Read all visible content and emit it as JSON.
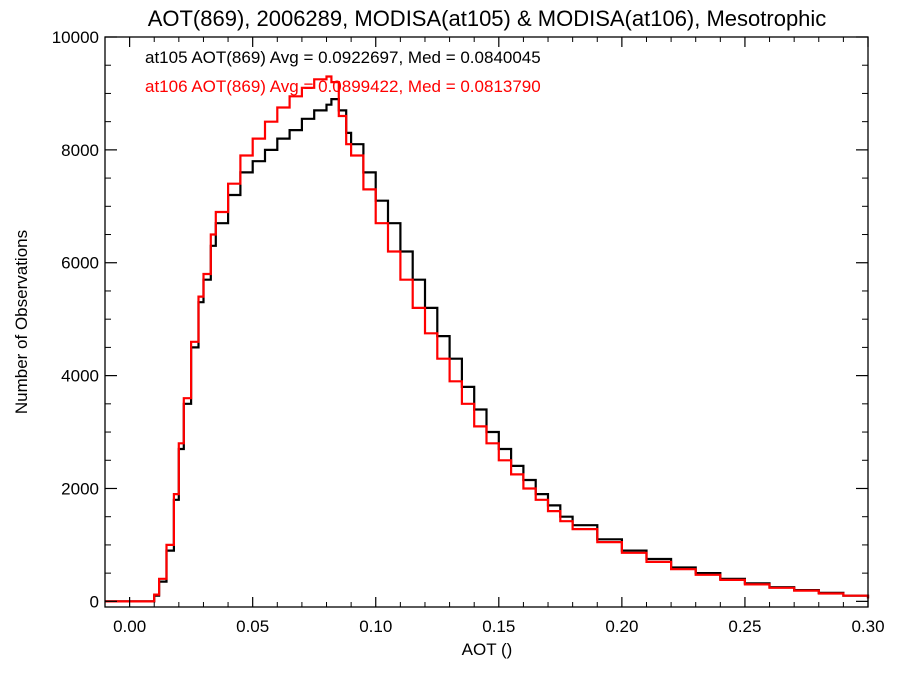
{
  "chart_data": {
    "type": "line",
    "title": "AOT(869), 2006289, MODISA(at105) & MODISA(at106), Mesotrophic",
    "xlabel": "AOT ()",
    "ylabel": "Number of Observations",
    "xlim": [
      -0.01,
      0.3
    ],
    "ylim": [
      -100,
      10000
    ],
    "x_ticks": [
      0.0,
      0.05,
      0.1,
      0.15,
      0.2,
      0.25,
      0.3
    ],
    "x_tick_labels": [
      "0.00",
      "0.05",
      "0.10",
      "0.15",
      "0.20",
      "0.25",
      "0.30"
    ],
    "y_ticks": [
      0,
      2000,
      4000,
      6000,
      8000,
      10000
    ],
    "y_tick_labels": [
      "0",
      "2000",
      "4000",
      "6000",
      "8000",
      "10000"
    ],
    "legend_position": "top-left",
    "grid": false,
    "series": [
      {
        "name": "at105",
        "color": "#000000",
        "annotation": "at105 AOT(869) Avg = 0.0922697, Med = 0.0840045",
        "x": [
          -0.01,
          0.0,
          0.009,
          0.01,
          0.012,
          0.015,
          0.018,
          0.02,
          0.022,
          0.025,
          0.028,
          0.03,
          0.033,
          0.035,
          0.04,
          0.045,
          0.05,
          0.055,
          0.06,
          0.065,
          0.07,
          0.075,
          0.08,
          0.082,
          0.085,
          0.088,
          0.09,
          0.095,
          0.1,
          0.105,
          0.11,
          0.115,
          0.12,
          0.125,
          0.13,
          0.135,
          0.14,
          0.145,
          0.15,
          0.155,
          0.16,
          0.165,
          0.17,
          0.175,
          0.18,
          0.19,
          0.2,
          0.21,
          0.22,
          0.23,
          0.24,
          0.25,
          0.26,
          0.27,
          0.28,
          0.29,
          0.3
        ],
        "y": [
          0,
          0,
          0,
          100,
          350,
          900,
          1800,
          2700,
          3500,
          4500,
          5300,
          5700,
          6300,
          6700,
          7200,
          7600,
          7800,
          8000,
          8200,
          8350,
          8550,
          8700,
          8800,
          8900,
          8700,
          8300,
          8100,
          7600,
          7100,
          6700,
          6200,
          5700,
          5200,
          4700,
          4300,
          3800,
          3400,
          3000,
          2700,
          2400,
          2150,
          1900,
          1700,
          1500,
          1350,
          1100,
          900,
          750,
          600,
          500,
          400,
          320,
          250,
          200,
          150,
          100,
          50
        ]
      },
      {
        "name": "at106",
        "color": "#ff0000",
        "annotation": "at106 AOT(869) Avg = 0.0899422, Med = 0.0813790",
        "x": [
          -0.01,
          0.0,
          0.009,
          0.01,
          0.012,
          0.015,
          0.018,
          0.02,
          0.022,
          0.025,
          0.028,
          0.03,
          0.033,
          0.035,
          0.04,
          0.045,
          0.05,
          0.055,
          0.06,
          0.065,
          0.07,
          0.075,
          0.08,
          0.082,
          0.085,
          0.088,
          0.09,
          0.095,
          0.1,
          0.105,
          0.11,
          0.115,
          0.12,
          0.125,
          0.13,
          0.135,
          0.14,
          0.145,
          0.15,
          0.155,
          0.16,
          0.165,
          0.17,
          0.175,
          0.18,
          0.19,
          0.2,
          0.21,
          0.22,
          0.23,
          0.24,
          0.25,
          0.26,
          0.27,
          0.28,
          0.29,
          0.3
        ],
        "y": [
          0,
          0,
          0,
          120,
          400,
          1000,
          1900,
          2800,
          3600,
          4600,
          5400,
          5800,
          6500,
          6900,
          7400,
          7900,
          8200,
          8500,
          8750,
          8950,
          9100,
          9250,
          9300,
          9200,
          8600,
          8100,
          7900,
          7300,
          6700,
          6200,
          5700,
          5200,
          4750,
          4300,
          3900,
          3500,
          3100,
          2800,
          2500,
          2250,
          2000,
          1800,
          1600,
          1420,
          1280,
          1050,
          860,
          700,
          570,
          470,
          380,
          300,
          240,
          190,
          140,
          100,
          50
        ]
      }
    ]
  }
}
